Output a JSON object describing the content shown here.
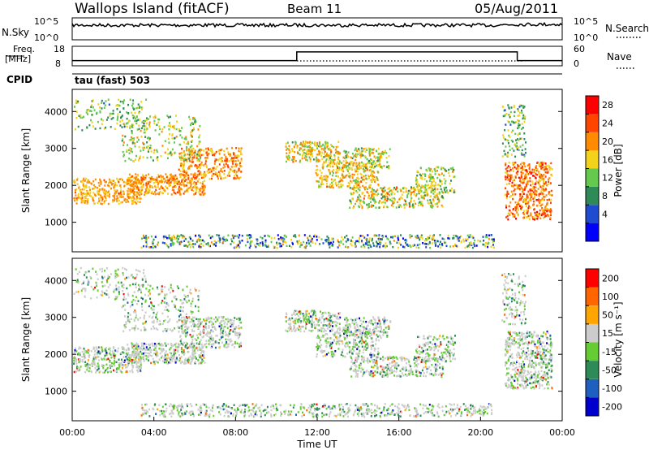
{
  "header": {
    "station": "Wallops Island (fitACF)",
    "beam": "Beam 11",
    "date": "05/Aug/2011"
  },
  "chart_data": [
    {
      "type": "line",
      "name": "noise-panel",
      "left_label": "N.Sky",
      "right_label": "N.Search",
      "left_ticks": [
        "10^5",
        "10^0"
      ],
      "right_ticks": [
        "10^5",
        "10^0"
      ]
    },
    {
      "type": "line",
      "name": "freq-panel",
      "left_label_line1": "Freq.",
      "left_label_line2": "[MHz]",
      "right_label": "Nave",
      "left_ticks": [
        18,
        8
      ],
      "right_ticks": [
        60,
        0
      ],
      "step_x_hours": [
        0,
        11.0,
        11.0,
        21.8,
        21.8,
        24
      ],
      "step_level": [
        0.1,
        0.1,
        0.55,
        0.55,
        0.1,
        0.1
      ]
    },
    {
      "type": "heatmap",
      "name": "power-panel",
      "cpid_label": "CPID",
      "cpid_value": "tau (fast) 503",
      "ylabel": "Slant Range [km]",
      "ylim": [
        200,
        4600
      ],
      "yticks": [
        1000,
        2000,
        3000,
        4000
      ],
      "xlim": [
        0,
        24
      ],
      "colorbar_label": "Power [dB]",
      "colorbar_ticks": [
        "28",
        "24",
        "20",
        "16",
        "12",
        "8",
        "4"
      ],
      "colorbar_colors": [
        "#0000ff",
        "#1f4bd1",
        "#2e8b57",
        "#66c94f",
        "#f2d21a",
        "#ff8c00",
        "#ff4500",
        "#ff0000"
      ]
    },
    {
      "type": "heatmap",
      "name": "velocity-panel",
      "ylabel": "Slant Range [km]",
      "ylim": [
        200,
        4600
      ],
      "yticks": [
        1000,
        2000,
        3000,
        4000
      ],
      "xlim": [
        0,
        24
      ],
      "xlabel": "Time UT",
      "xticks": [
        "00:00",
        "04:00",
        "08:00",
        "12:00",
        "16:00",
        "20:00",
        "00:00"
      ],
      "colorbar_label": "Velocity [m s⁻¹]",
      "colorbar_ticks": [
        "200",
        "100",
        "50",
        "15",
        "-15",
        "-50",
        "-100",
        "-200"
      ],
      "colorbar_colors": [
        "#0000cc",
        "#1f5fbf",
        "#2e8b57",
        "#66cc33",
        "#cccccc",
        "#ffa500",
        "#ff6600",
        "#ff0000"
      ]
    }
  ]
}
